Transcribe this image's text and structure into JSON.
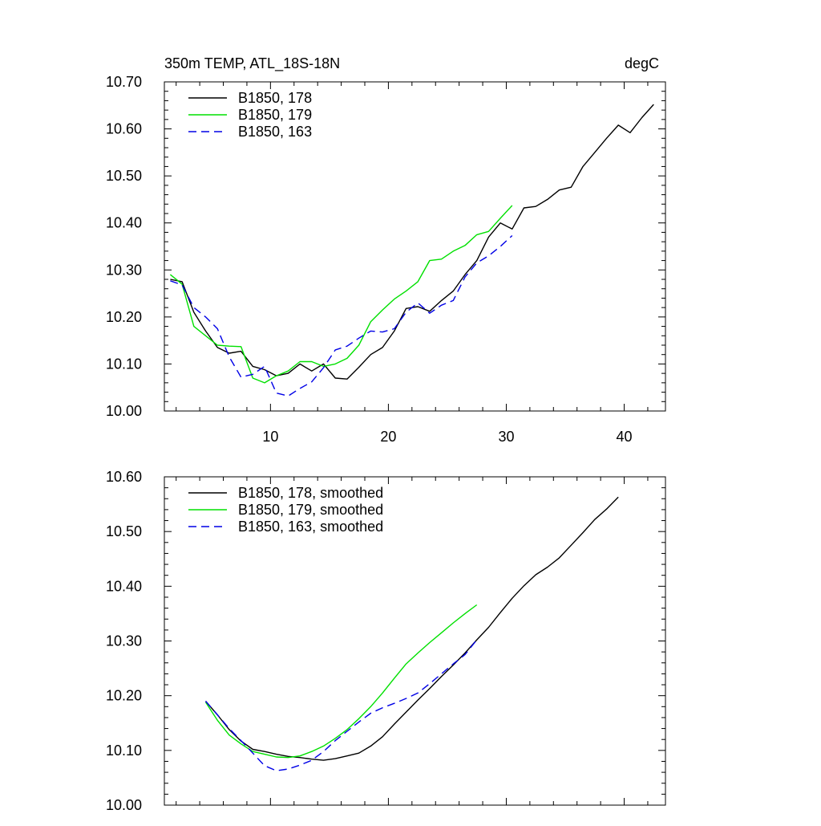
{
  "chart_data": [
    {
      "type": "line",
      "title": "350m TEMP, ATL_18S-18N",
      "units": "degC",
      "xlim": [
        1,
        43.5
      ],
      "ylim": [
        10.0,
        10.7
      ],
      "xticks": [
        10,
        20,
        30,
        40
      ],
      "xtick_labels": [
        "10",
        "20",
        "30",
        "40"
      ],
      "yticks": [
        10.0,
        10.1,
        10.2,
        10.3,
        10.4,
        10.5,
        10.6,
        10.7
      ],
      "ytick_labels": [
        "10.00",
        "10.10",
        "10.20",
        "10.30",
        "10.40",
        "10.50",
        "10.60",
        "10.70"
      ],
      "legend_position": "top-left",
      "series": [
        {
          "name": "B1850, 178",
          "color": "#000000",
          "dash": "solid",
          "x": [
            1.5,
            2.5,
            3.5,
            4.5,
            5.5,
            6.5,
            7.5,
            8.5,
            9.5,
            10.5,
            11.5,
            12.5,
            13.5,
            14.5,
            15.5,
            16.5,
            17.5,
            18.5,
            19.5,
            20.5,
            21.5,
            22.5,
            23.5,
            24.5,
            25.5,
            26.5,
            27.5,
            28.5,
            29.5,
            30.5,
            31.5,
            32.5,
            33.5,
            34.5,
            35.5,
            36.5,
            37.5,
            38.5,
            39.5,
            40.5,
            41.5,
            42.5
          ],
          "y": [
            10.28,
            10.275,
            10.21,
            10.17,
            10.135,
            10.123,
            10.127,
            10.095,
            10.088,
            10.075,
            10.08,
            10.1,
            10.085,
            10.1,
            10.07,
            10.068,
            10.093,
            10.12,
            10.135,
            10.17,
            10.218,
            10.222,
            10.212,
            10.235,
            10.255,
            10.29,
            10.32,
            10.37,
            10.4,
            10.387,
            10.432,
            10.435,
            10.45,
            10.47,
            10.476,
            10.52,
            10.55,
            10.58,
            10.608,
            10.592,
            10.624,
            10.652
          ]
        },
        {
          "name": "B1850, 179",
          "color": "#00e000",
          "dash": "solid",
          "x": [
            1.5,
            2.5,
            3.5,
            4.5,
            5.5,
            6.5,
            7.5,
            8.5,
            9.5,
            10.5,
            11.5,
            12.5,
            13.5,
            14.5,
            15.5,
            16.5,
            17.5,
            18.5,
            19.5,
            20.5,
            21.5,
            22.5,
            23.5,
            24.5,
            25.5,
            26.5,
            27.5,
            28.5,
            29.5,
            30.5
          ],
          "y": [
            10.29,
            10.27,
            10.18,
            10.16,
            10.14,
            10.138,
            10.137,
            10.07,
            10.06,
            10.075,
            10.085,
            10.105,
            10.105,
            10.095,
            10.1,
            10.112,
            10.14,
            10.19,
            10.215,
            10.238,
            10.255,
            10.275,
            10.32,
            10.323,
            10.34,
            10.352,
            10.375,
            10.382,
            10.41,
            10.437
          ]
        },
        {
          "name": "B1850, 163",
          "color": "#0000e6",
          "dash": "dashed",
          "x": [
            1.5,
            2.5,
            3.5,
            4.5,
            5.5,
            6.5,
            7.5,
            8.5,
            9.5,
            10.5,
            11.5,
            12.5,
            13.5,
            14.5,
            15.5,
            16.5,
            17.5,
            18.5,
            19.5,
            20.5,
            21.5,
            22.5,
            23.5,
            24.5,
            25.5,
            26.5,
            27.5,
            28.5,
            29.5,
            30.5
          ],
          "y": [
            10.277,
            10.268,
            10.22,
            10.2,
            10.175,
            10.115,
            10.072,
            10.078,
            10.095,
            10.038,
            10.032,
            10.048,
            10.062,
            10.092,
            10.13,
            10.138,
            10.155,
            10.17,
            10.168,
            10.175,
            10.21,
            10.23,
            10.208,
            10.225,
            10.235,
            10.285,
            10.315,
            10.33,
            10.35,
            10.373
          ]
        }
      ]
    },
    {
      "type": "line",
      "title": "",
      "units": "",
      "xlim": [
        1,
        43.5
      ],
      "ylim": [
        10.0,
        10.6
      ],
      "xticks": [
        10,
        20,
        30,
        40
      ],
      "xtick_labels": [],
      "yticks": [
        10.0,
        10.1,
        10.2,
        10.3,
        10.4,
        10.5,
        10.6
      ],
      "ytick_labels": [
        "10.00",
        "10.10",
        "10.20",
        "10.30",
        "10.40",
        "10.50",
        "10.60"
      ],
      "legend_position": "top-left",
      "series": [
        {
          "name": "B1850, 178, smoothed",
          "color": "#000000",
          "dash": "solid",
          "x": [
            4.5,
            5.5,
            6.5,
            7.5,
            8.5,
            9.5,
            10.5,
            11.5,
            12.5,
            13.5,
            14.5,
            15.5,
            16.5,
            17.5,
            18.5,
            19.5,
            20.5,
            21.5,
            22.5,
            23.5,
            24.5,
            25.5,
            26.5,
            27.5,
            28.5,
            29.5,
            30.5,
            31.5,
            32.5,
            33.5,
            34.5,
            35.5,
            36.5,
            37.5,
            38.5,
            39.5
          ],
          "y": [
            10.19,
            10.165,
            10.138,
            10.117,
            10.102,
            10.098,
            10.093,
            10.089,
            10.087,
            10.084,
            10.082,
            10.085,
            10.09,
            10.095,
            10.108,
            10.125,
            10.148,
            10.17,
            10.192,
            10.213,
            10.235,
            10.256,
            10.278,
            10.302,
            10.325,
            10.352,
            10.378,
            10.401,
            10.421,
            10.435,
            10.452,
            10.475,
            10.498,
            10.522,
            10.541,
            10.563
          ]
        },
        {
          "name": "B1850, 179, smoothed",
          "color": "#00e000",
          "dash": "solid",
          "x": [
            4.5,
            5.5,
            6.5,
            7.5,
            8.5,
            9.5,
            10.5,
            11.5,
            12.5,
            13.5,
            14.5,
            15.5,
            16.5,
            17.5,
            18.5,
            19.5,
            20.5,
            21.5,
            22.5,
            23.5,
            24.5,
            25.5,
            26.5,
            27.5
          ],
          "y": [
            10.188,
            10.155,
            10.128,
            10.112,
            10.098,
            10.093,
            10.088,
            10.087,
            10.09,
            10.098,
            10.108,
            10.122,
            10.138,
            10.158,
            10.18,
            10.205,
            10.232,
            10.258,
            10.278,
            10.297,
            10.315,
            10.333,
            10.35,
            10.366
          ]
        },
        {
          "name": "B1850, 163, smoothed",
          "color": "#0000e6",
          "dash": "dashed",
          "x": [
            4.5,
            5.5,
            6.5,
            7.5,
            8.5,
            9.5,
            10.5,
            11.5,
            12.5,
            13.5,
            14.5,
            15.5,
            16.5,
            17.5,
            18.5,
            19.5,
            20.5,
            21.5,
            22.5,
            23.5,
            24.5,
            25.5,
            26.5,
            27.5
          ],
          "y": [
            10.19,
            10.165,
            10.14,
            10.118,
            10.095,
            10.072,
            10.063,
            10.066,
            10.073,
            10.082,
            10.098,
            10.118,
            10.135,
            10.152,
            10.168,
            10.178,
            10.186,
            10.195,
            10.205,
            10.222,
            10.24,
            10.258,
            10.275,
            10.302
          ]
        }
      ]
    }
  ]
}
